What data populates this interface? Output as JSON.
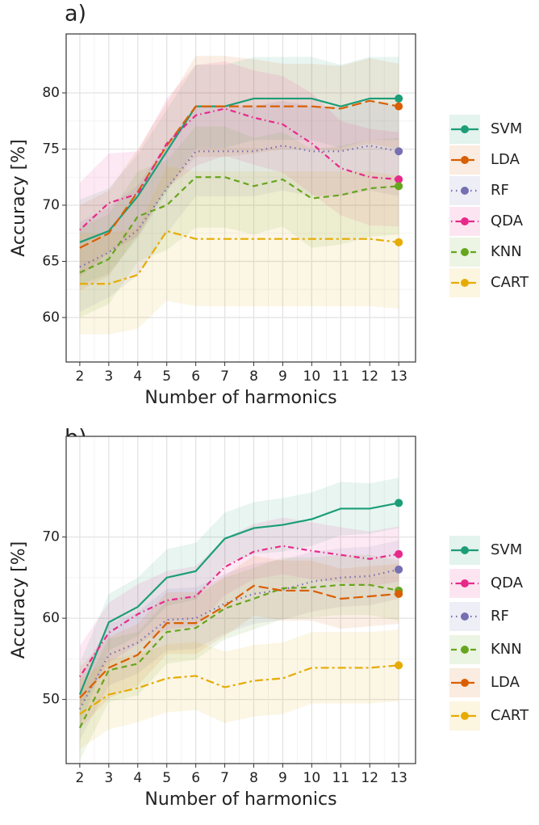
{
  "chart_data": [
    {
      "type": "line",
      "title": "a)",
      "x_label": "Number of harmonics",
      "y_label": "Accuracy [%]",
      "x": [
        2,
        3,
        4,
        5,
        6,
        7,
        8,
        9,
        10,
        11,
        12,
        13
      ],
      "xlim": [
        1.53,
        13.58
      ],
      "xticks": [
        2,
        3,
        4,
        5,
        6,
        7,
        8,
        9,
        10,
        11,
        12,
        13
      ],
      "ylim": [
        56.04,
        85.25
      ],
      "yticks": [
        60,
        65,
        70,
        75,
        80
      ],
      "grid": true,
      "legend": "right",
      "series": [
        {
          "name": "SVM",
          "color": "#1b9e77",
          "linetype": "solid",
          "values": [
            66.7,
            67.7,
            70.8,
            74.8,
            78.8,
            78.8,
            79.5,
            79.5,
            79.5,
            78.8,
            79.5,
            79.5
          ],
          "upper": [
            70.5,
            71.5,
            74.5,
            78.5,
            82.5,
            82.5,
            83.2,
            83.2,
            83.2,
            82.5,
            83.2,
            83.2
          ],
          "lower": [
            62.9,
            63.9,
            67.1,
            71.1,
            75.1,
            75.1,
            75.8,
            75.8,
            75.8,
            75.1,
            75.8,
            75.8
          ]
        },
        {
          "name": "LDA",
          "color": "#d95f02",
          "linetype": "longdash",
          "values": [
            66.2,
            67.5,
            71.2,
            75.3,
            78.8,
            78.8,
            78.8,
            78.8,
            78.8,
            78.6,
            79.3,
            78.8
          ],
          "upper": [
            70.0,
            71.3,
            75.0,
            79.1,
            83.3,
            83.3,
            83.0,
            82.6,
            82.6,
            82.4,
            83.1,
            82.6
          ],
          "lower": [
            62.4,
            63.7,
            67.4,
            71.5,
            74.3,
            74.3,
            74.6,
            75.0,
            75.0,
            74.8,
            75.5,
            75.0
          ]
        },
        {
          "name": "RF",
          "color": "#7570b3",
          "linetype": "dotted",
          "values": [
            64.5,
            65.8,
            67.8,
            71.5,
            74.8,
            74.8,
            74.8,
            75.3,
            74.8,
            74.8,
            75.3,
            74.8
          ],
          "upper": [
            68.5,
            69.8,
            71.8,
            75.5,
            78.8,
            78.8,
            78.8,
            79.3,
            78.8,
            78.8,
            79.3,
            78.8
          ],
          "lower": [
            60.5,
            61.8,
            63.8,
            67.5,
            70.8,
            70.8,
            70.8,
            71.3,
            70.8,
            70.8,
            71.3,
            70.8
          ]
        },
        {
          "name": "QDA",
          "color": "#e7298a",
          "linetype": "dotdash",
          "values": [
            67.8,
            70.2,
            71.0,
            75.5,
            78.0,
            78.6,
            77.8,
            77.2,
            75.5,
            73.3,
            72.5,
            72.3
          ],
          "upper": [
            72.0,
            74.6,
            74.8,
            79.5,
            82.5,
            82.8,
            82.0,
            81.5,
            80.0,
            77.5,
            76.8,
            76.5
          ],
          "lower": [
            63.6,
            65.8,
            67.2,
            71.5,
            73.5,
            74.4,
            73.6,
            72.9,
            71.0,
            69.1,
            68.2,
            68.1
          ]
        },
        {
          "name": "KNN",
          "color": "#66a61e",
          "linetype": "dashed",
          "values": [
            64.0,
            65.2,
            69.0,
            70.0,
            72.5,
            72.5,
            71.7,
            72.3,
            70.6,
            70.9,
            71.5,
            71.7
          ],
          "upper": [
            68.0,
            69.2,
            73.0,
            74.0,
            77.0,
            77.0,
            76.0,
            76.5,
            75.0,
            75.3,
            75.8,
            76.0
          ],
          "lower": [
            60.0,
            61.2,
            65.0,
            66.0,
            68.0,
            68.0,
            67.4,
            68.1,
            66.2,
            66.5,
            67.2,
            67.4
          ]
        },
        {
          "name": "CART",
          "color": "#e6ab02",
          "linetype": "twodash",
          "values": [
            63.0,
            63.0,
            63.8,
            67.7,
            67.0,
            67.0,
            67.0,
            67.0,
            67.0,
            67.0,
            67.0,
            66.7
          ],
          "upper": [
            67.5,
            67.5,
            68.0,
            73.5,
            73.0,
            73.0,
            73.0,
            73.0,
            73.0,
            73.0,
            73.0,
            72.6
          ],
          "lower": [
            58.5,
            58.5,
            59.0,
            61.5,
            61.0,
            61.0,
            61.0,
            61.0,
            61.0,
            61.0,
            61.0,
            60.8
          ]
        }
      ]
    },
    {
      "type": "line",
      "title": "b)",
      "x_label": "Number of harmonics",
      "y_label": "Accuracy [%]",
      "x": [
        2,
        3,
        4,
        5,
        6,
        7,
        8,
        9,
        10,
        11,
        12,
        13
      ],
      "xlim": [
        1.53,
        13.58
      ],
      "xticks": [
        2,
        3,
        4,
        5,
        6,
        7,
        8,
        9,
        10,
        11,
        12,
        13
      ],
      "ylim": [
        42.1,
        82.4
      ],
      "yticks": [
        50,
        60,
        70
      ],
      "grid": true,
      "legend": "right",
      "series": [
        {
          "name": "SVM",
          "color": "#1b9e77",
          "linetype": "solid",
          "values": [
            50.6,
            59.5,
            61.4,
            65.0,
            65.8,
            69.8,
            71.1,
            71.5,
            72.2,
            73.5,
            73.5,
            74.2
          ],
          "upper": [
            54.5,
            63.0,
            65.0,
            68.5,
            69.3,
            73.0,
            74.3,
            74.8,
            75.5,
            76.8,
            76.6,
            77.3
          ],
          "lower": [
            46.7,
            56.0,
            57.8,
            61.5,
            62.3,
            66.6,
            67.9,
            68.2,
            68.9,
            70.2,
            70.4,
            71.1
          ]
        },
        {
          "name": "QDA",
          "color": "#e7298a",
          "linetype": "dotdash",
          "values": [
            52.8,
            58.2,
            60.5,
            62.2,
            62.7,
            66.3,
            68.2,
            68.9,
            68.3,
            67.8,
            67.3,
            67.9
          ],
          "upper": [
            56.6,
            61.9,
            64.2,
            65.8,
            66.4,
            69.8,
            71.6,
            72.4,
            71.8,
            71.2,
            70.7,
            71.3
          ],
          "lower": [
            49.0,
            54.5,
            56.8,
            58.6,
            59.0,
            62.8,
            64.8,
            65.4,
            64.8,
            64.4,
            63.9,
            64.5
          ]
        },
        {
          "name": "RF",
          "color": "#7570b3",
          "linetype": "dotted",
          "values": [
            48.8,
            55.5,
            57.0,
            59.8,
            60.0,
            61.8,
            63.0,
            63.5,
            64.5,
            65.0,
            65.2,
            66.0
          ],
          "upper": [
            52.6,
            59.3,
            60.8,
            63.6,
            63.8,
            65.5,
            66.7,
            67.2,
            68.2,
            68.6,
            68.8,
            69.6
          ],
          "lower": [
            45.0,
            51.7,
            53.2,
            56.0,
            56.2,
            58.1,
            59.3,
            59.8,
            60.8,
            61.4,
            61.6,
            62.4
          ]
        },
        {
          "name": "KNN",
          "color": "#66a61e",
          "linetype": "dashed",
          "values": [
            46.5,
            53.6,
            54.4,
            58.3,
            58.8,
            61.2,
            62.4,
            63.7,
            63.8,
            64.1,
            64.1,
            63.4
          ],
          "upper": [
            50.5,
            57.5,
            58.3,
            62.2,
            62.7,
            65.0,
            66.2,
            67.5,
            67.5,
            67.8,
            67.8,
            67.1
          ],
          "lower": [
            42.5,
            49.7,
            50.5,
            54.4,
            54.9,
            57.4,
            58.6,
            59.9,
            60.1,
            60.4,
            60.4,
            59.7
          ]
        },
        {
          "name": "LDA",
          "color": "#d95f02",
          "linetype": "longdash",
          "values": [
            50.2,
            53.9,
            55.5,
            59.4,
            59.4,
            61.5,
            64.0,
            63.4,
            63.4,
            62.4,
            62.7,
            63.0
          ],
          "upper": [
            54.0,
            57.7,
            59.3,
            63.2,
            63.2,
            65.2,
            67.7,
            67.1,
            67.1,
            66.1,
            66.4,
            66.7
          ],
          "lower": [
            46.4,
            50.1,
            51.7,
            55.6,
            55.6,
            57.8,
            60.3,
            59.7,
            59.7,
            58.7,
            59.0,
            59.3
          ]
        },
        {
          "name": "CART",
          "color": "#e6ab02",
          "linetype": "twodash",
          "values": [
            48.2,
            50.6,
            51.4,
            52.6,
            52.9,
            51.5,
            52.3,
            52.6,
            53.9,
            53.9,
            53.9,
            54.2
          ],
          "upper": [
            52.5,
            54.9,
            55.6,
            56.8,
            57.1,
            55.9,
            56.7,
            57.0,
            58.3,
            58.3,
            58.3,
            58.6
          ],
          "lower": [
            43.9,
            46.3,
            47.2,
            48.4,
            48.7,
            47.1,
            47.9,
            48.2,
            49.5,
            49.5,
            49.5,
            49.8
          ]
        }
      ]
    }
  ]
}
